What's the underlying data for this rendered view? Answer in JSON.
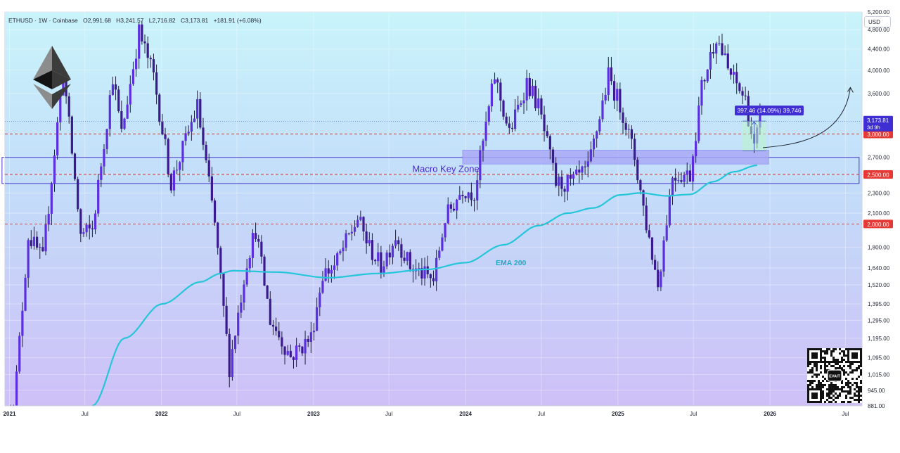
{
  "header": {
    "symbol": "ETHUSD · 1W · Coinbase",
    "open": "O2,991.68",
    "high": "H3,241.57",
    "low": "L2,716.82",
    "close": "C3,173.81",
    "change": "+181.91 (+6.08%)",
    "currency_button": "USD"
  },
  "chart_data": {
    "type": "candlestick",
    "timeframe": "1W",
    "y_axis": {
      "scale": "log",
      "range": [
        881,
        5200
      ],
      "tick_labels": [
        "5,200.00",
        "4,800.00",
        "4,400.00",
        "4,000.00",
        "3,600.00",
        "3,000.00",
        "2,700.00",
        "2,500.00",
        "2,300.00",
        "2,100.00",
        "2,000.00",
        "1,800.00",
        "1,640.00",
        "1,520.00",
        "1,395.00",
        "1,295.00",
        "1,195.00",
        "1,095.00",
        "1,015.00",
        "945.00",
        "881.00"
      ]
    },
    "x_axis": {
      "range": [
        "2020-12-21",
        "2026-08-10"
      ],
      "tick_labels": [
        {
          "label": "2021",
          "date": "2021-01-01",
          "bold": true
        },
        {
          "label": "Jul",
          "date": "2021-07-01",
          "bold": false
        },
        {
          "label": "2022",
          "date": "2022-01-01",
          "bold": true
        },
        {
          "label": "Jul",
          "date": "2022-07-01",
          "bold": false
        },
        {
          "label": "2023",
          "date": "2023-01-01",
          "bold": true
        },
        {
          "label": "Jul",
          "date": "2023-07-01",
          "bold": false
        },
        {
          "label": "2024",
          "date": "2024-01-01",
          "bold": true
        },
        {
          "label": "Jul",
          "date": "2024-07-01",
          "bold": false
        },
        {
          "label": "2025",
          "date": "2025-01-01",
          "bold": true
        },
        {
          "label": "Jul",
          "date": "2025-07-01",
          "bold": false
        },
        {
          "label": "2026",
          "date": "2026-01-01",
          "bold": true
        },
        {
          "label": "Jul",
          "date": "2026-07-01",
          "bold": false
        }
      ]
    },
    "price_path": [
      [
        "2021-01-04",
        730
      ],
      [
        "2021-02-15",
        1900
      ],
      [
        "2021-03-22",
        1700
      ],
      [
        "2021-05-10",
        4000
      ],
      [
        "2021-06-21",
        1900
      ],
      [
        "2021-07-19",
        1950
      ],
      [
        "2021-09-06",
        3900
      ],
      [
        "2021-09-27",
        3000
      ],
      [
        "2021-11-08",
        4750
      ],
      [
        "2021-12-13",
        3900
      ],
      [
        "2022-01-24",
        2400
      ],
      [
        "2022-03-28",
        3400
      ],
      [
        "2022-05-09",
        2000
      ],
      [
        "2022-06-13",
        1050
      ],
      [
        "2022-07-25",
        1700
      ],
      [
        "2022-08-15",
        1950
      ],
      [
        "2022-09-19",
        1300
      ],
      [
        "2022-11-07",
        1100
      ],
      [
        "2022-12-26",
        1200
      ],
      [
        "2023-01-23",
        1600
      ],
      [
        "2023-02-20",
        1650
      ],
      [
        "2023-04-17",
        2050
      ],
      [
        "2023-05-15",
        1800
      ],
      [
        "2023-06-12",
        1650
      ],
      [
        "2023-07-17",
        1900
      ],
      [
        "2023-08-21",
        1650
      ],
      [
        "2023-10-16",
        1550
      ],
      [
        "2023-11-13",
        2050
      ],
      [
        "2023-12-25",
        2350
      ],
      [
        "2024-01-22",
        2300
      ],
      [
        "2024-03-11",
        3900
      ],
      [
        "2024-04-15",
        3000
      ],
      [
        "2024-05-27",
        3800
      ],
      [
        "2024-06-24",
        3400
      ],
      [
        "2024-08-05",
        2400
      ],
      [
        "2024-09-09",
        2400
      ],
      [
        "2024-10-21",
        2550
      ],
      [
        "2024-12-09",
        3900
      ],
      [
        "2025-01-13",
        3300
      ],
      [
        "2025-02-10",
        2700
      ],
      [
        "2025-03-10",
        2000
      ],
      [
        "2025-04-07",
        1520
      ],
      [
        "2025-05-12",
        2500
      ],
      [
        "2025-06-23",
        2500
      ],
      [
        "2025-07-21",
        3700
      ],
      [
        "2025-08-25",
        4700
      ],
      [
        "2025-09-22",
        4000
      ],
      [
        "2025-11-03",
        3500
      ],
      [
        "2025-11-24",
        2800
      ],
      [
        "2025-12-08",
        3173.81
      ]
    ],
    "ema_path": [
      [
        "2021-07-19",
        881
      ],
      [
        "2021-10-04",
        1195
      ],
      [
        "2022-01-03",
        1395
      ],
      [
        "2022-04-04",
        1540
      ],
      [
        "2022-05-23",
        1600
      ],
      [
        "2022-06-20",
        1620
      ],
      [
        "2022-10-03",
        1610
      ],
      [
        "2023-02-06",
        1570
      ],
      [
        "2023-06-05",
        1600
      ],
      [
        "2023-10-02",
        1630
      ],
      [
        "2024-01-01",
        1680
      ],
      [
        "2024-04-01",
        1820
      ],
      [
        "2024-06-24",
        1985
      ],
      [
        "2024-09-02",
        2100
      ],
      [
        "2024-11-04",
        2150
      ],
      [
        "2025-01-06",
        2280
      ],
      [
        "2025-02-24",
        2300
      ],
      [
        "2025-04-28",
        2270
      ],
      [
        "2025-06-23",
        2285
      ],
      [
        "2025-08-18",
        2420
      ],
      [
        "2025-10-06",
        2530
      ],
      [
        "2025-12-01",
        2605
      ]
    ],
    "annotations": {
      "ema_label": "EMA 200",
      "macro_zone": {
        "label": "Macro Key Zone",
        "price_low": 2400,
        "price_high": 2700,
        "date_start": "2020-12-14",
        "date_end": "2026-08-03"
      },
      "support_zone": {
        "price_low": 2620,
        "price_high": 2790,
        "date_start": "2023-12-25",
        "date_end": "2025-12-29"
      },
      "measure": {
        "label": "397.46 (14.09%) 39,746",
        "price_low": 2780,
        "price_high": 3180,
        "date_start": "2025-10-27",
        "date_end": "2025-12-22"
      },
      "projection_arrow": {
        "date_start": "2025-12-15",
        "price_start": 2820,
        "date_end": "2026-07-13",
        "price_end": 3700
      },
      "dashed_levels": [
        {
          "price": 3000,
          "label": "3,000.00",
          "color": "#e53935"
        },
        {
          "price": 2500,
          "label": "2,500.00",
          "color": "#e53935"
        },
        {
          "price": 2000,
          "label": "2,000.00",
          "color": "#e53935"
        }
      ],
      "current_price": {
        "price": 3173.81,
        "label": "3,173.81",
        "countdown": "3d 9h",
        "color": "#3f2fd3"
      }
    },
    "colors": {
      "candle_body": "#4a1fc7",
      "wick": "#1f1d3c",
      "ema": "#26c6da",
      "zone_fill": "#a8a6f5",
      "zone_border": "#4338ca",
      "level_dash": "#d32f2f",
      "current_line": "#5c6bc0",
      "measure_fill": "#b9f6ca",
      "measure_badge": "#3f2fd3"
    }
  },
  "watermark": {
    "logo_icon": "ethereum-diamond-icon",
    "qr_icon": "qr-code-icon",
    "qr_center_text": "EVAIT"
  }
}
